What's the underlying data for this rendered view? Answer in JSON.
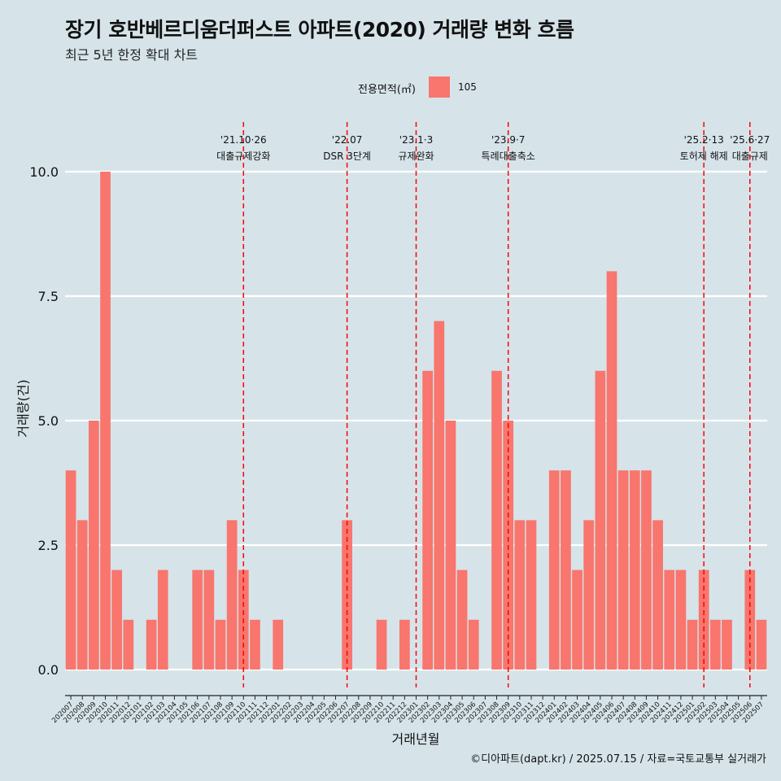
{
  "title": "장기 호반베르디움더퍼스트 아파트(2020) 거래량 변화 흐름",
  "subtitle": "최근 5년 한정 확대 차트",
  "legend": {
    "title": "전용면적(㎡)",
    "entries": [
      "105"
    ]
  },
  "caption": "©디아파트(dapt.kr) / 2025.07.15 / 자료=국토교통부 실거래가",
  "colors": {
    "background": "#d6e4ea",
    "bar": "#f8766d",
    "vline": "#ff0000",
    "grid": "#ffffff"
  },
  "chart_data": {
    "type": "bar",
    "xlabel": "거래년월",
    "ylabel": "거래량(건)",
    "ylim": [
      -0.4,
      10.5
    ],
    "yticks": [
      0.0,
      2.5,
      5.0,
      7.5,
      10.0
    ],
    "ytick_labels": [
      "0.0",
      "2.5",
      "5.0",
      "7.5",
      "10.0"
    ],
    "grid": true,
    "legend_position": "top",
    "categories": [
      "202007",
      "202008",
      "202009",
      "202010",
      "202011",
      "202012",
      "202101",
      "202102",
      "202103",
      "202104",
      "202105",
      "202106",
      "202107",
      "202108",
      "202109",
      "202110",
      "202111",
      "202112",
      "202201",
      "202202",
      "202203",
      "202204",
      "202205",
      "202206",
      "202207",
      "202208",
      "202209",
      "202210",
      "202211",
      "202212",
      "202301",
      "202302",
      "202303",
      "202304",
      "202305",
      "202306",
      "202307",
      "202308",
      "202309",
      "202310",
      "202311",
      "202312",
      "202401",
      "202402",
      "202403",
      "202404",
      "202405",
      "202406",
      "202407",
      "202408",
      "202409",
      "202410",
      "202411",
      "202412",
      "202501",
      "202502",
      "202503",
      "202504",
      "202505",
      "202506",
      "202507"
    ],
    "series": [
      {
        "name": "105",
        "values": [
          4,
          3,
          5,
          10,
          2,
          1,
          0,
          1,
          2,
          0,
          0,
          2,
          2,
          1,
          3,
          2,
          1,
          0,
          1,
          0,
          0,
          0,
          0,
          0,
          3,
          0,
          0,
          1,
          0,
          1,
          0,
          6,
          7,
          5,
          2,
          1,
          0,
          6,
          5,
          3,
          3,
          0,
          4,
          4,
          2,
          3,
          6,
          8,
          4,
          4,
          4,
          3,
          2,
          2,
          1,
          2,
          1,
          1,
          0,
          2,
          1
        ]
      }
    ],
    "annotations": [
      {
        "x": 15.0,
        "date": "'21.10·26",
        "label": "대출규제강화"
      },
      {
        "x": 24.0,
        "date": "'22.07",
        "label": "DSR 3단계"
      },
      {
        "x": 30.0,
        "date": "'23.1·3",
        "label": "규제완화"
      },
      {
        "x": 38.0,
        "date": "'23.9·7",
        "label": "특례대출축소"
      },
      {
        "x": 55.0,
        "date": "'25.2·13",
        "label": "토허제 해제"
      },
      {
        "x": 59.0,
        "date": "'25.6·27",
        "label": "대출규제"
      }
    ]
  }
}
